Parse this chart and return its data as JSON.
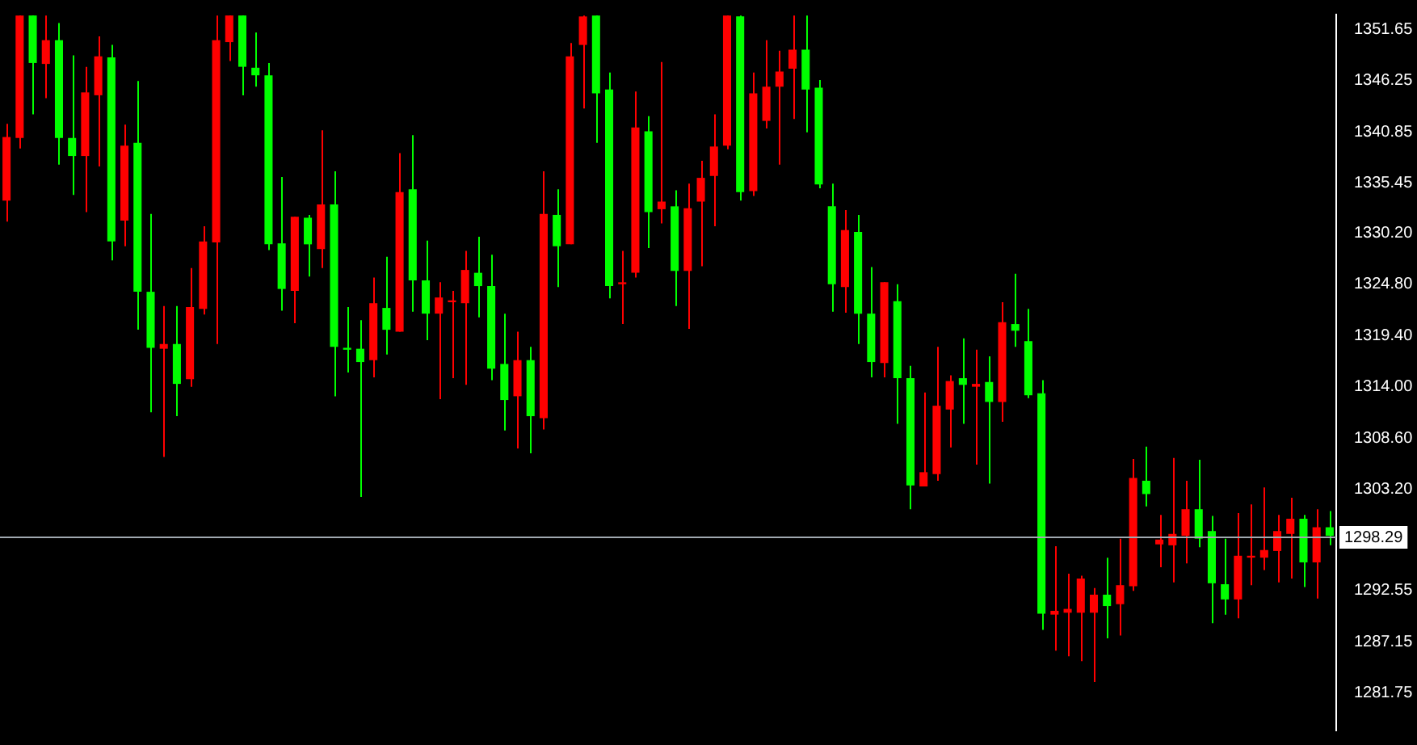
{
  "chart_data": {
    "type": "candlestick",
    "categories": [
      null,
      null,
      null,
      null,
      null,
      null,
      null,
      null,
      null,
      null,
      null,
      null,
      null,
      null,
      null,
      null,
      null,
      null,
      null,
      null,
      null,
      null,
      null,
      null,
      null,
      null,
      null,
      null,
      null,
      null,
      null,
      null,
      null,
      null,
      null,
      null,
      null,
      null,
      null,
      null,
      null,
      null,
      null,
      null,
      null,
      null,
      null,
      null,
      null,
      null,
      null,
      null,
      null,
      null,
      null,
      null,
      null,
      null,
      null,
      null,
      null,
      null,
      null,
      null,
      null,
      null,
      null,
      null,
      null,
      null,
      null,
      null,
      null,
      null,
      null,
      null,
      null,
      null,
      null,
      null,
      null,
      null,
      null,
      null,
      null,
      null,
      null,
      null,
      null,
      null,
      null,
      null,
      null,
      null,
      null,
      null,
      null,
      null,
      null,
      null,
      null,
      null
    ],
    "ohlc": [
      [
        1333.6,
        1341.7,
        1331.4,
        1340.3
      ],
      [
        1340.2,
        1353.1,
        1339.1,
        1353.1
      ],
      [
        1353.1,
        1353.1,
        1342.7,
        1348.1
      ],
      [
        1348.0,
        1353.1,
        1344.4,
        1350.5
      ],
      [
        1350.5,
        1352.3,
        1337.4,
        1340.2
      ],
      [
        1340.2,
        1348.9,
        1334.2,
        1338.3
      ],
      [
        1338.3,
        1347.7,
        1332.4,
        1345.0
      ],
      [
        1344.7,
        1350.9,
        1337.2,
        1348.8
      ],
      [
        1348.7,
        1350.0,
        1327.3,
        1329.3
      ],
      [
        1331.5,
        1341.6,
        1328.8,
        1339.4
      ],
      [
        1339.7,
        1346.2,
        1320.0,
        1324.0
      ],
      [
        1324.0,
        1332.2,
        1311.3,
        1318.1
      ],
      [
        1318.0,
        1322.5,
        1306.6,
        1318.5
      ],
      [
        1318.5,
        1322.5,
        1310.9,
        1314.3
      ],
      [
        1314.8,
        1326.5,
        1314.0,
        1322.4
      ],
      [
        1322.2,
        1330.9,
        1321.6,
        1329.3
      ],
      [
        1329.2,
        1353.1,
        1318.5,
        1350.5
      ],
      [
        1350.3,
        1353.1,
        1348.3,
        1353.1
      ],
      [
        1353.1,
        1353.1,
        1344.7,
        1347.7
      ],
      [
        1347.6,
        1351.3,
        1345.6,
        1346.8
      ],
      [
        1346.8,
        1348.1,
        1328.4,
        1329.0
      ],
      [
        1329.1,
        1336.1,
        1322.0,
        1324.3
      ],
      [
        1324.1,
        1331.9,
        1320.7,
        1331.9
      ],
      [
        1331.8,
        1332.1,
        1325.6,
        1329.0
      ],
      [
        1328.5,
        1341.0,
        1326.5,
        1333.2
      ],
      [
        1333.2,
        1336.7,
        1313.0,
        1318.2
      ],
      [
        1318.1,
        1322.4,
        1315.5,
        1317.9
      ],
      [
        1318.0,
        1321.0,
        1302.4,
        1316.6
      ],
      [
        1316.8,
        1325.5,
        1315.0,
        1322.8
      ],
      [
        1322.3,
        1327.7,
        1317.4,
        1320.0
      ],
      [
        1319.8,
        1338.6,
        1319.8,
        1334.5
      ],
      [
        1334.8,
        1340.5,
        1321.9,
        1325.2
      ],
      [
        1325.2,
        1329.4,
        1318.9,
        1321.7
      ],
      [
        1321.7,
        1325.0,
        1312.7,
        1323.4
      ],
      [
        1322.9,
        1324.1,
        1314.9,
        1323.1
      ],
      [
        1322.8,
        1328.3,
        1314.2,
        1326.3
      ],
      [
        1326.0,
        1329.8,
        1321.3,
        1324.6
      ],
      [
        1324.6,
        1327.9,
        1314.7,
        1315.9
      ],
      [
        1316.4,
        1321.7,
        1309.4,
        1312.6
      ],
      [
        1313.0,
        1319.8,
        1307.5,
        1316.8
      ],
      [
        1316.8,
        1318.2,
        1307.0,
        1310.9
      ],
      [
        1310.7,
        1336.7,
        1309.5,
        1332.2
      ],
      [
        1332.1,
        1334.8,
        1324.5,
        1328.8
      ],
      [
        1329.0,
        1350.2,
        1329.0,
        1348.8
      ],
      [
        1350.0,
        1353.1,
        1343.3,
        1353.0
      ],
      [
        1353.1,
        1353.1,
        1339.7,
        1344.9
      ],
      [
        1345.3,
        1347.1,
        1323.3,
        1324.6
      ],
      [
        1324.8,
        1328.3,
        1320.6,
        1325.0
      ],
      [
        1326.0,
        1345.1,
        1325.5,
        1341.3
      ],
      [
        1340.9,
        1342.5,
        1328.6,
        1332.4
      ],
      [
        1332.7,
        1348.2,
        1331.2,
        1333.5
      ],
      [
        1333.0,
        1334.7,
        1322.5,
        1326.2
      ],
      [
        1326.2,
        1335.4,
        1320.1,
        1332.8
      ],
      [
        1333.5,
        1337.8,
        1326.7,
        1336.0
      ],
      [
        1336.2,
        1342.7,
        1330.9,
        1339.3
      ],
      [
        1339.4,
        1353.1,
        1339.0,
        1353.1
      ],
      [
        1353.0,
        1353.1,
        1333.6,
        1334.5
      ],
      [
        1334.6,
        1347.1,
        1334.1,
        1344.9
      ],
      [
        1342.0,
        1350.5,
        1341.2,
        1345.6
      ],
      [
        1345.6,
        1349.4,
        1337.4,
        1347.2
      ],
      [
        1347.5,
        1353.1,
        1342.2,
        1349.5
      ],
      [
        1349.5,
        1353.1,
        1340.8,
        1345.3
      ],
      [
        1345.5,
        1346.3,
        1334.9,
        1335.3
      ],
      [
        1333.0,
        1335.4,
        1321.9,
        1324.8
      ],
      [
        1324.5,
        1332.6,
        1321.8,
        1330.5
      ],
      [
        1330.3,
        1332.1,
        1318.5,
        1321.7
      ],
      [
        1321.7,
        1326.6,
        1315.0,
        1316.6
      ],
      [
        1316.5,
        1325.0,
        1315.0,
        1325.0
      ],
      [
        1323.0,
        1324.8,
        1310.1,
        1314.9
      ],
      [
        1314.9,
        1316.2,
        1301.1,
        1303.6
      ],
      [
        1303.5,
        1313.4,
        1303.5,
        1305.0
      ],
      [
        1304.8,
        1318.2,
        1304.1,
        1312.0
      ],
      [
        1311.6,
        1315.2,
        1307.6,
        1314.6
      ],
      [
        1314.9,
        1319.1,
        1310.1,
        1314.2
      ],
      [
        1314.0,
        1317.9,
        1305.8,
        1314.3
      ],
      [
        1314.5,
        1317.2,
        1303.8,
        1312.4
      ],
      [
        1312.4,
        1322.9,
        1310.3,
        1320.8
      ],
      [
        1320.6,
        1325.9,
        1318.2,
        1319.9
      ],
      [
        1318.8,
        1322.2,
        1312.8,
        1313.1
      ],
      [
        1313.3,
        1314.7,
        1288.4,
        1290.1
      ],
      [
        1290.0,
        1297.2,
        1286.2,
        1290.4
      ],
      [
        1290.2,
        1294.3,
        1285.6,
        1290.6
      ],
      [
        1290.2,
        1294.1,
        1285.1,
        1293.8
      ],
      [
        1290.2,
        1292.8,
        1282.9,
        1292.1
      ],
      [
        1292.1,
        1296.0,
        1287.5,
        1290.9
      ],
      [
        1291.1,
        1298.0,
        1287.8,
        1293.1
      ],
      [
        1293.0,
        1306.4,
        1292.5,
        1304.4
      ],
      [
        1304.1,
        1307.7,
        1301.4,
        1302.7
      ],
      [
        1297.4,
        1300.5,
        1295.0,
        1297.9
      ],
      [
        1297.3,
        1306.5,
        1293.4,
        1298.5
      ],
      [
        1298.3,
        1304.1,
        1295.4,
        1301.1
      ],
      [
        1301.1,
        1306.3,
        1297.1,
        1298.0
      ],
      [
        1298.8,
        1300.4,
        1289.1,
        1293.3
      ],
      [
        1293.2,
        1298.0,
        1290.0,
        1291.6
      ],
      [
        1291.6,
        1300.7,
        1289.6,
        1296.2
      ],
      [
        1296.0,
        1301.6,
        1293.1,
        1296.2
      ],
      [
        1296.0,
        1303.4,
        1294.7,
        1296.8
      ],
      [
        1296.7,
        1300.5,
        1293.4,
        1298.8
      ],
      [
        1298.5,
        1302.3,
        1293.8,
        1300.1
      ],
      [
        1300.1,
        1300.5,
        1292.9,
        1295.5
      ],
      [
        1295.5,
        1301.1,
        1291.7,
        1299.2
      ],
      [
        1299.2,
        1300.9,
        1297.3,
        1298.3
      ]
    ],
    "colors": [
      "#ff0000",
      "#ff0000",
      "#00ff00",
      "#ff0000",
      "#00ff00",
      "#00ff00",
      "#ff0000",
      "#ff0000",
      "#00ff00",
      "#ff0000",
      "#00ff00",
      "#00ff00",
      "#ff0000",
      "#00ff00",
      "#ff0000",
      "#ff0000",
      "#ff0000",
      "#ff0000",
      "#00ff00",
      "#00ff00",
      "#00ff00",
      "#00ff00",
      "#ff0000",
      "#00ff00",
      "#ff0000",
      "#00ff00",
      "#00ff00",
      "#00ff00",
      "#ff0000",
      "#00ff00",
      "#ff0000",
      "#00ff00",
      "#00ff00",
      "#ff0000",
      "#ff0000",
      "#ff0000",
      "#00ff00",
      "#00ff00",
      "#00ff00",
      "#ff0000",
      "#00ff00",
      "#ff0000",
      "#00ff00",
      "#ff0000",
      "#ff0000",
      "#00ff00",
      "#00ff00",
      "#ff0000",
      "#ff0000",
      "#00ff00",
      "#ff0000",
      "#00ff00",
      "#ff0000",
      "#ff0000",
      "#ff0000",
      "#ff0000",
      "#00ff00",
      "#ff0000",
      "#ff0000",
      "#ff0000",
      "#ff0000",
      "#00ff00",
      "#00ff00",
      "#00ff00",
      "#ff0000",
      "#00ff00",
      "#00ff00",
      "#ff0000",
      "#00ff00",
      "#00ff00",
      "#ff0000",
      "#ff0000",
      "#ff0000",
      "#00ff00",
      "#ff0000",
      "#00ff00",
      "#ff0000",
      "#00ff00",
      "#00ff00",
      "#00ff00",
      "#ff0000",
      "#ff0000",
      "#ff0000",
      "#ff0000",
      "#00ff00",
      "#ff0000",
      "#ff0000",
      "#00ff00",
      "#ff0000",
      "#ff0000",
      "#ff0000",
      "#00ff00",
      "#00ff00",
      "#00ff00",
      "#ff0000",
      "#ff0000",
      "#ff0000",
      "#ff0000",
      "#ff0000",
      "#00ff00",
      "#ff0000",
      "#00ff00"
    ],
    "ylim": [
      1277.8,
      1353.2
    ],
    "yticks": [
      {
        "value": 1351.65,
        "label": "1351.65"
      },
      {
        "value": 1346.25,
        "label": "1346.25"
      },
      {
        "value": 1340.85,
        "label": "1340.85"
      },
      {
        "value": 1335.45,
        "label": "1335.45"
      },
      {
        "value": 1330.2,
        "label": "1330.20"
      },
      {
        "value": 1324.8,
        "label": "1324.80"
      },
      {
        "value": 1319.4,
        "label": "1319.40"
      },
      {
        "value": 1314,
        "label": "1314.00"
      },
      {
        "value": 1308.6,
        "label": "1308.60"
      },
      {
        "value": 1303.2,
        "label": "1303.20"
      },
      {
        "value": 1292.55,
        "label": "1292.55"
      },
      {
        "value": 1287.15,
        "label": "1287.15"
      },
      {
        "value": 1281.75,
        "label": "1281.75"
      }
    ],
    "tick_labels": "y",
    "ref_lines": [
      {
        "axis": "y",
        "value": 1298.29,
        "label": "1298.29",
        "color": "#a0a8b0"
      }
    ]
  }
}
